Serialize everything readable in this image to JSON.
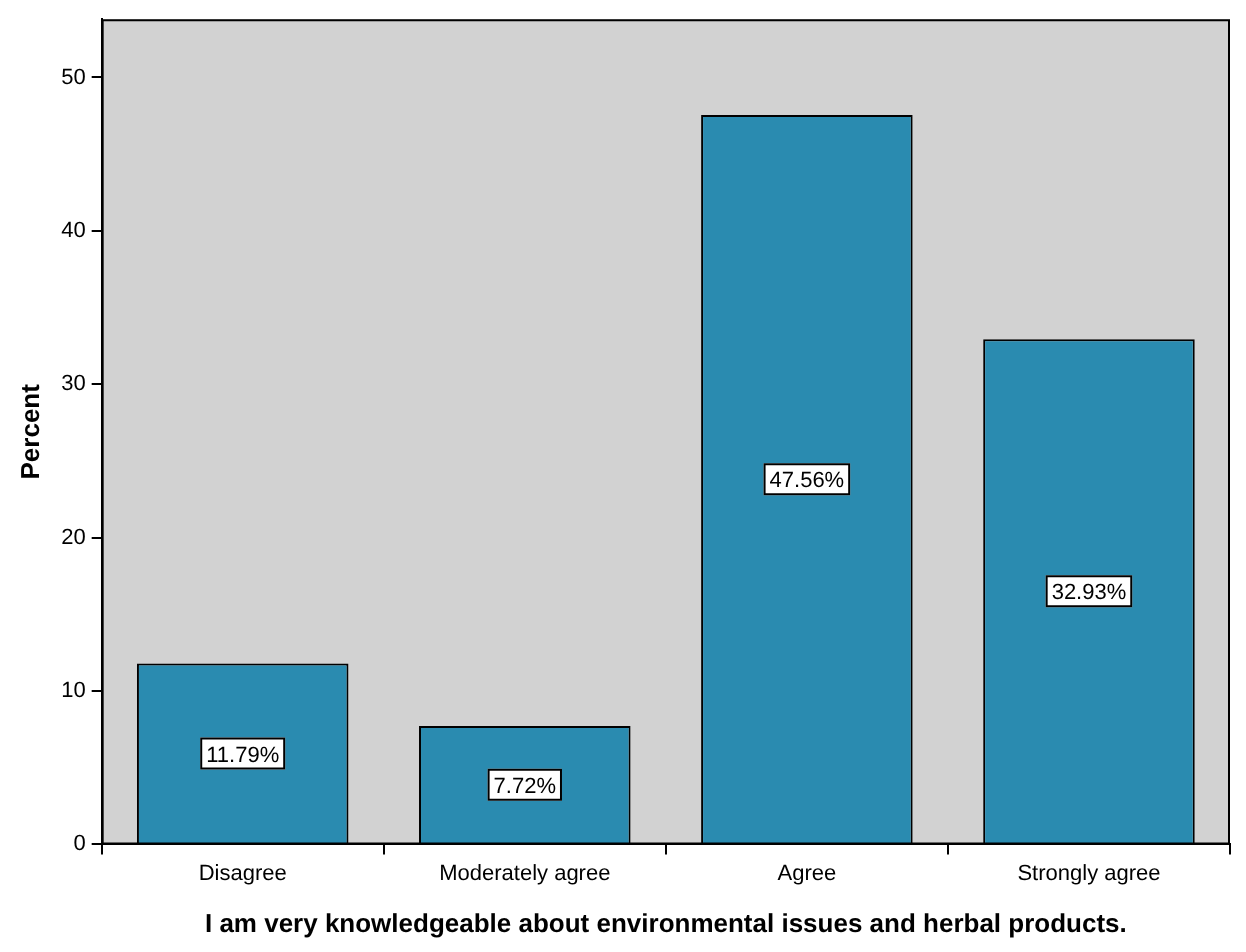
{
  "chart_data": {
    "type": "bar",
    "xlabel": "I am very knowledgeable about environmental issues and herbal products.",
    "ylabel": "Percent",
    "categories": [
      "Disagree",
      "Moderately agree",
      "Agree",
      "Strongly agree"
    ],
    "values": [
      11.79,
      7.72,
      47.56,
      32.93
    ],
    "value_labels": [
      "11.79%",
      "7.72%",
      "47.56%",
      "32.93%"
    ],
    "color": "#2a8bb0",
    "ylim": [
      0,
      53.8
    ],
    "yticks": [
      0,
      10,
      20,
      30,
      40,
      50
    ],
    "grid": false,
    "legend": false
  }
}
